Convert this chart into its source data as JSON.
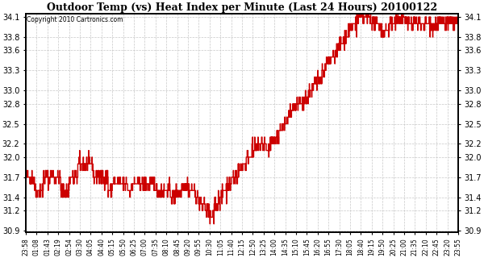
{
  "title": "Outdoor Temp (vs) Heat Index per Minute (Last 24 Hours) 20100122",
  "copyright": "Copyright 2010 Cartronics.com",
  "line_color": "#cc0000",
  "bg_color": "#ffffff",
  "grid_color": "#c8c8c8",
  "ylim": [
    30.9,
    34.1
  ],
  "yticks": [
    30.9,
    31.2,
    31.4,
    31.7,
    32.0,
    32.2,
    32.5,
    32.8,
    33.0,
    33.3,
    33.6,
    33.8,
    34.1
  ],
  "xtick_labels": [
    "23:58",
    "01:08",
    "01:43",
    "02:19",
    "02:54",
    "03:30",
    "04:05",
    "04:40",
    "05:15",
    "05:50",
    "06:25",
    "07:00",
    "07:35",
    "08:10",
    "08:45",
    "09:20",
    "09:55",
    "10:30",
    "11:05",
    "11:40",
    "12:15",
    "12:50",
    "13:25",
    "14:00",
    "14:35",
    "15:10",
    "15:45",
    "16:20",
    "16:55",
    "17:30",
    "18:05",
    "18:40",
    "19:15",
    "19:50",
    "20:25",
    "21:00",
    "21:35",
    "22:10",
    "22:45",
    "23:20",
    "23:55"
  ],
  "n_points": 1441,
  "seed": 42
}
